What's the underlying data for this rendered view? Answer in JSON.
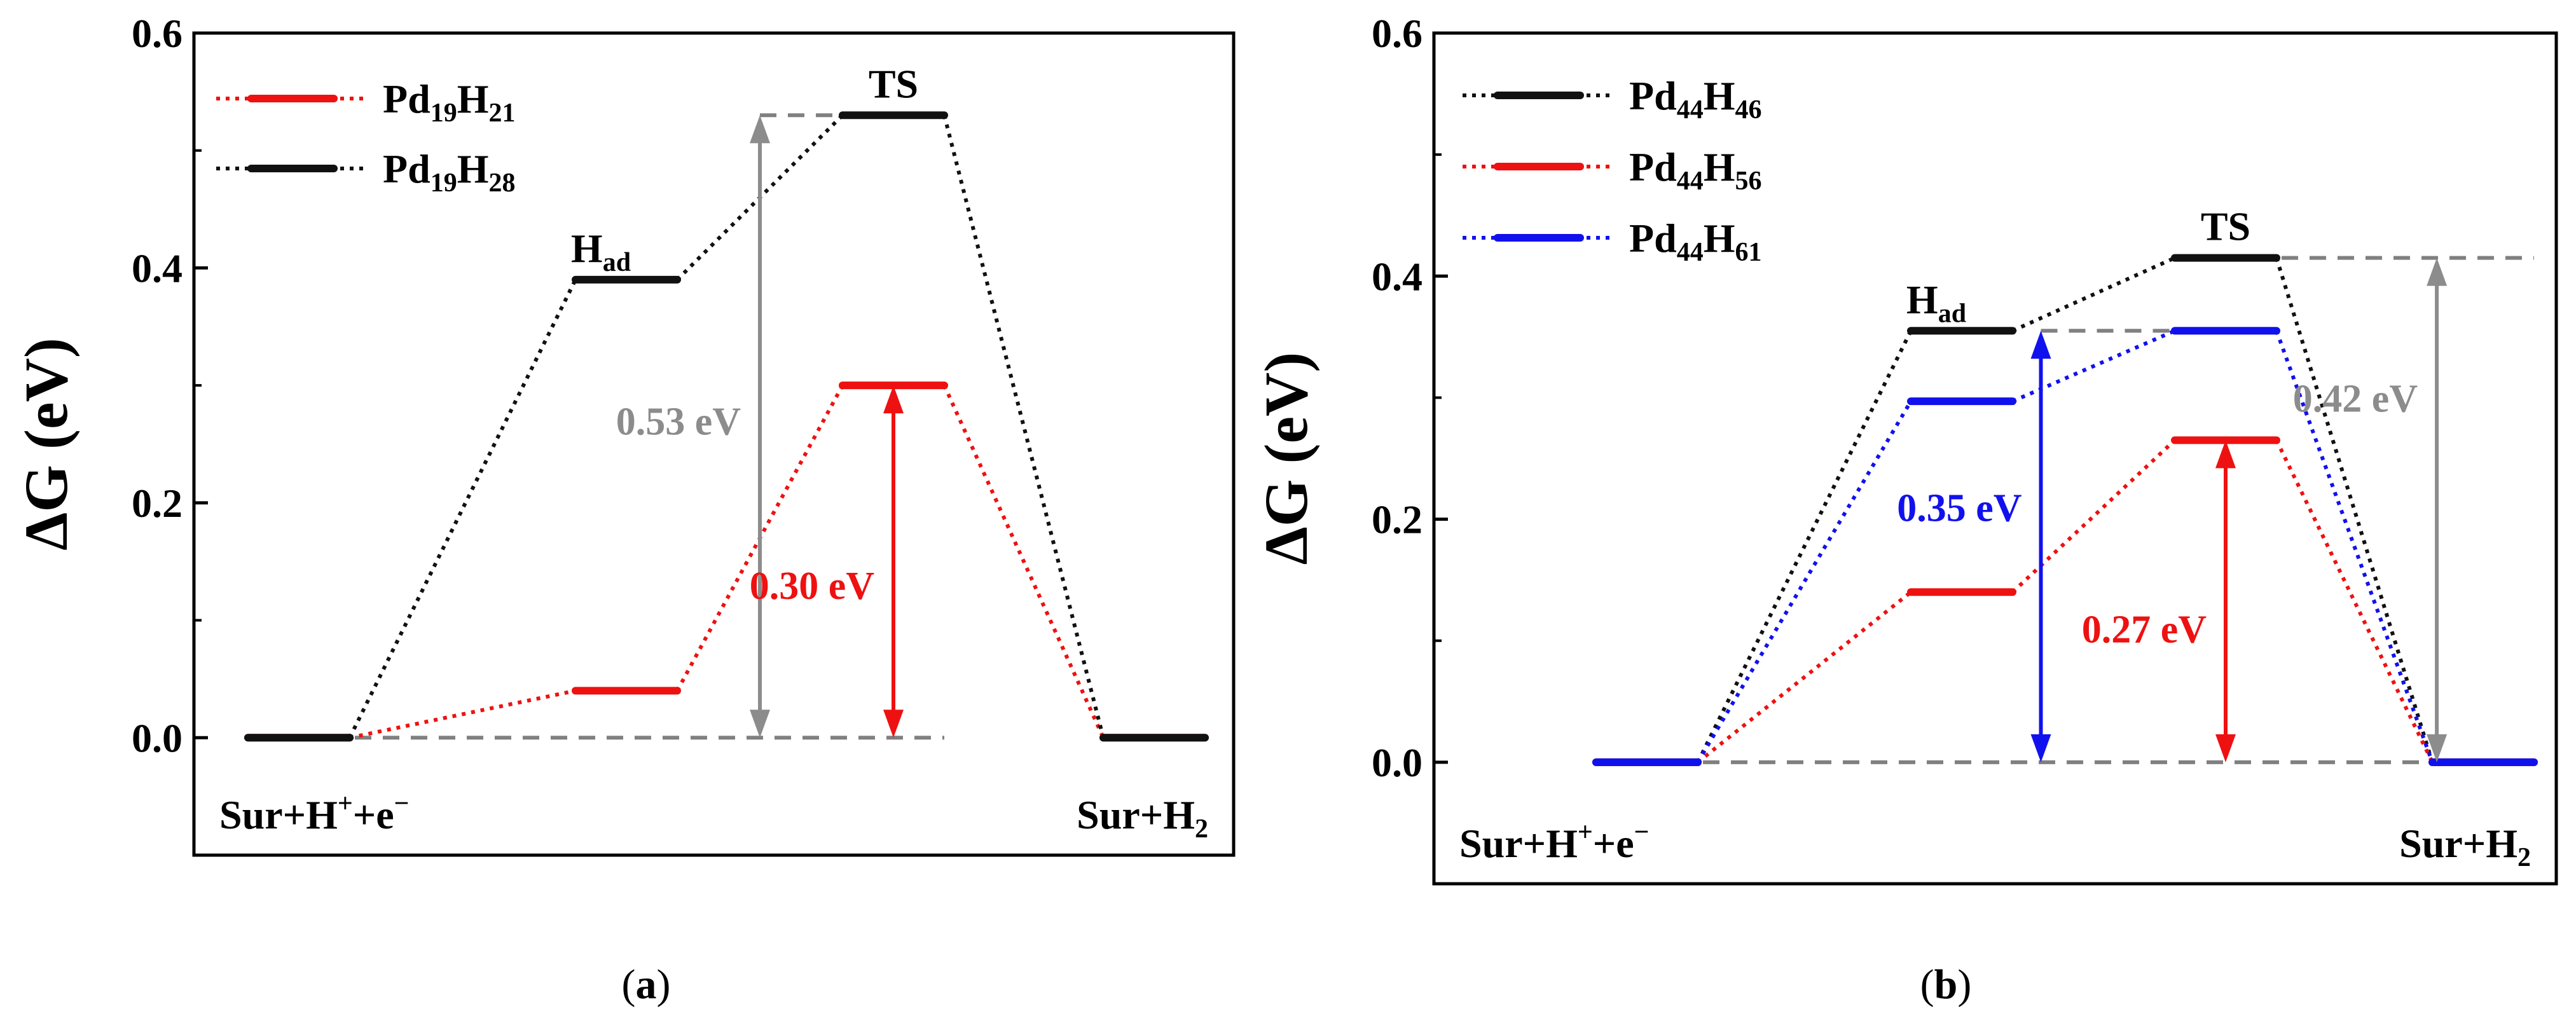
{
  "chart_data": [
    {
      "type": "line",
      "panel_label": "a",
      "ylabel": "ΔG (eV)",
      "xlabel": "",
      "ylim": [
        -0.1,
        0.6
      ],
      "yticks": [
        "0.0",
        "0.2",
        "0.4",
        "0.6"
      ],
      "ytick_values": [
        0.0,
        0.2,
        0.4,
        0.6
      ],
      "x": [
        0,
        1,
        2,
        3
      ],
      "categories": [
        "Sur+H⁺+e⁻",
        "H_ad",
        "TS",
        "Sur+H₂"
      ],
      "state_labels": [
        {
          "base": "Sur+H",
          "sup": "+",
          "mid": "+e",
          "sup2": "−",
          "sub": ""
        },
        {
          "base": "H",
          "sub": "ad"
        },
        {
          "base": "TS"
        },
        {
          "base": "Sur+H",
          "sub": "2"
        }
      ],
      "series": [
        {
          "name": "Pd19H21",
          "legend_base": "Pd",
          "legend_sub1": "19",
          "legend_mid": "H",
          "legend_sub2": "21",
          "color": "#ee1111",
          "values": [
            0.0,
            0.04,
            0.3,
            0.0
          ]
        },
        {
          "name": "Pd19H28",
          "legend_base": "Pd",
          "legend_sub1": "19",
          "legend_mid": "H",
          "legend_sub2": "28",
          "color": "#111111",
          "values": [
            0.0,
            0.39,
            0.53,
            0.0
          ]
        }
      ],
      "reference_lines": [
        {
          "y": 0.0,
          "from_x": 0,
          "to_x": 2,
          "color": "#808080"
        },
        {
          "y": 0.53,
          "from_x": 1.5,
          "to_x": 2,
          "color": "#808080"
        }
      ],
      "annotations": [
        {
          "text": "0.53 eV",
          "color": "#8c8c8c",
          "y_from": 0.0,
          "y_to": 0.53,
          "x": 1.5,
          "text_y": 0.27,
          "text_side": "left"
        },
        {
          "text": "0.30 eV",
          "color": "#ee1111",
          "y_from": 0.0,
          "y_to": 0.3,
          "x": 2.0,
          "text_y": 0.13,
          "text_side": "left"
        }
      ],
      "state_label_positions": [
        {
          "x": 1,
          "y": 0.39
        },
        {
          "x": 2,
          "y": 0.53
        }
      ],
      "legend_position": "top-left",
      "caption": "a"
    },
    {
      "type": "line",
      "panel_label": "b",
      "ylabel": "ΔG (eV)",
      "xlabel": "",
      "ylim": [
        -0.1,
        0.6
      ],
      "yticks": [
        "0.0",
        "0.2",
        "0.4",
        "0.6"
      ],
      "ytick_values": [
        0.0,
        0.2,
        0.4,
        0.6
      ],
      "x": [
        0,
        1,
        2,
        3
      ],
      "categories": [
        "Sur+H⁺+e⁻",
        "H_ad",
        "TS",
        "Sur+H₂"
      ],
      "state_labels": [
        {
          "base": "Sur+H",
          "sup": "+",
          "mid": "+e",
          "sup2": "−",
          "sub": ""
        },
        {
          "base": "H",
          "sub": "ad"
        },
        {
          "base": "TS"
        },
        {
          "base": "Sur+H",
          "sub": "2"
        }
      ],
      "series": [
        {
          "name": "Pd44H46",
          "legend_base": "Pd",
          "legend_sub1": "44",
          "legend_mid": "H",
          "legend_sub2": "46",
          "color": "#111111",
          "values": [
            0.0,
            0.355,
            0.415,
            0.0
          ]
        },
        {
          "name": "Pd44H56",
          "legend_base": "Pd",
          "legend_sub1": "44",
          "legend_mid": "H",
          "legend_sub2": "56",
          "color": "#ee1111",
          "values": [
            0.0,
            0.14,
            0.265,
            0.0
          ]
        },
        {
          "name": "Pd44H61",
          "legend_base": "Pd",
          "legend_sub1": "44",
          "legend_mid": "H",
          "legend_sub2": "61",
          "color": "#1111ee",
          "values": [
            0.0,
            0.297,
            0.355,
            0.0
          ]
        }
      ],
      "reference_lines": [
        {
          "y": 0.0,
          "from_x": 0,
          "to_x": 3,
          "color": "#808080"
        },
        {
          "y": 0.415,
          "from_x": 2,
          "to_x": 3,
          "color": "#808080"
        },
        {
          "y": 0.355,
          "from_x": 1.3,
          "to_x": 2,
          "color": "#808080"
        }
      ],
      "annotations": [
        {
          "text": "0.35 eV",
          "color": "#1111ee",
          "y_from": 0.0,
          "y_to": 0.355,
          "x": 1.3,
          "text_y": 0.21,
          "text_side": "left"
        },
        {
          "text": "0.27 eV",
          "color": "#ee1111",
          "y_from": 0.0,
          "y_to": 0.265,
          "x": 2.0,
          "text_y": 0.11,
          "text_side": "left"
        },
        {
          "text": "0.42 eV",
          "color": "#8c8c8c",
          "y_from": 0.0,
          "y_to": 0.415,
          "x": 2.82,
          "text_y": 0.3,
          "text_side": "left"
        }
      ],
      "state_label_positions": [
        {
          "x": 1,
          "y": 0.355
        },
        {
          "x": 2,
          "y": 0.415
        }
      ],
      "legend_position": "top-left",
      "caption": "b"
    }
  ]
}
